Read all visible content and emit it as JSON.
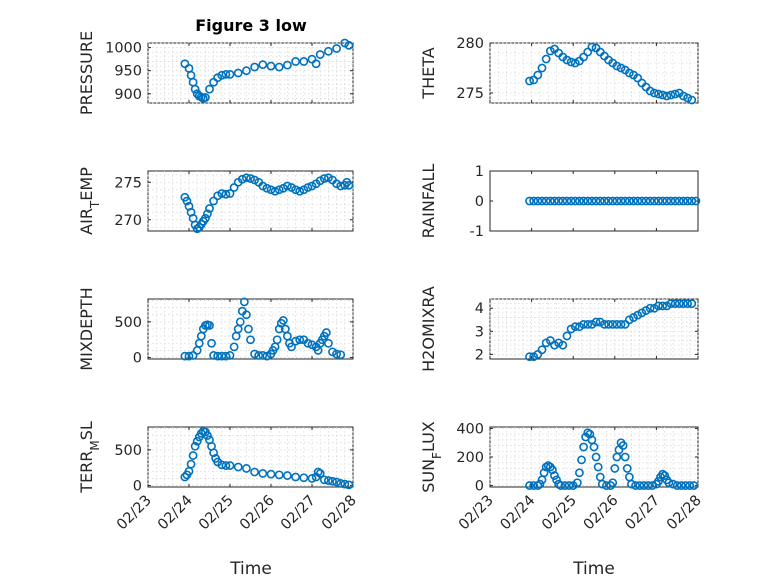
{
  "figure_title": "Figure 3 low",
  "marker_color": "#0072BD",
  "chart_data": [
    {
      "type": "scatter",
      "ylabel": "PRESSURE",
      "title": "Figure 3 low",
      "ylim": [
        880,
        1010
      ],
      "yticks": [
        900,
        950,
        1000
      ],
      "grid": true,
      "x": [
        23.9,
        24.0,
        24.05,
        24.1,
        24.15,
        24.2,
        24.25,
        24.3,
        24.35,
        24.4,
        24.5,
        24.6,
        24.7,
        24.8,
        24.9,
        25.0,
        25.2,
        25.4,
        25.6,
        25.8,
        26.0,
        26.2,
        26.4,
        26.6,
        26.8,
        27.0,
        27.1,
        27.2,
        27.4,
        27.6,
        27.8,
        27.9
      ],
      "y": [
        965,
        955,
        940,
        925,
        910,
        900,
        895,
        893,
        890,
        892,
        910,
        925,
        935,
        940,
        942,
        942,
        945,
        950,
        958,
        963,
        960,
        958,
        962,
        970,
        970,
        975,
        965,
        985,
        992,
        998,
        1010,
        1005
      ]
    },
    {
      "type": "scatter",
      "ylabel": "THETA",
      "ylim": [
        274,
        280
      ],
      "yticks": [
        275,
        280
      ],
      "grid": true,
      "x": [
        23.95,
        24.05,
        24.15,
        24.25,
        24.35,
        24.45,
        24.55,
        24.65,
        24.75,
        24.85,
        24.95,
        25.05,
        25.15,
        25.25,
        25.35,
        25.45,
        25.55,
        25.65,
        25.75,
        25.85,
        25.95,
        26.05,
        26.15,
        26.25,
        26.35,
        26.45,
        26.55,
        26.65,
        26.75,
        26.85,
        26.95,
        27.05,
        27.15,
        27.25,
        27.35,
        27.45,
        27.55,
        27.65,
        27.75,
        27.85
      ],
      "y": [
        276.2,
        276.3,
        276.8,
        277.5,
        278.4,
        279.2,
        279.4,
        279.0,
        278.6,
        278.3,
        278.1,
        278.0,
        278.2,
        278.6,
        279.1,
        279.6,
        279.5,
        279.1,
        278.7,
        278.3,
        278.0,
        277.7,
        277.5,
        277.3,
        277.0,
        276.8,
        276.5,
        276.0,
        275.6,
        275.2,
        275.0,
        274.9,
        274.8,
        274.7,
        274.8,
        274.9,
        275.0,
        274.7,
        274.5,
        274.3
      ]
    },
    {
      "type": "scatter",
      "ylabel": "AIR_TEMP",
      "ylim": [
        268.5,
        276.5
      ],
      "yticks": [
        270,
        275
      ],
      "grid": true,
      "x": [
        23.9,
        23.95,
        24.0,
        24.05,
        24.1,
        24.15,
        24.2,
        24.25,
        24.3,
        24.35,
        24.4,
        24.45,
        24.5,
        24.6,
        24.7,
        24.8,
        24.9,
        25.0,
        25.1,
        25.2,
        25.3,
        25.4,
        25.5,
        25.6,
        25.7,
        25.8,
        25.9,
        26.0,
        26.1,
        26.2,
        26.3,
        26.4,
        26.5,
        26.6,
        26.7,
        26.8,
        26.9,
        27.0,
        27.1,
        27.2,
        27.3,
        27.4,
        27.5,
        27.6,
        27.7,
        27.8,
        27.85,
        27.9
      ],
      "y": [
        273,
        272.5,
        271.8,
        271,
        270.2,
        269.3,
        268.8,
        269.0,
        269.4,
        269.8,
        270.2,
        270.8,
        271.5,
        272.5,
        273.2,
        273.5,
        273.4,
        273.5,
        274.3,
        275.0,
        275.4,
        275.6,
        275.5,
        275.3,
        275.0,
        274.5,
        274.2,
        274.0,
        273.8,
        274.0,
        274.2,
        274.5,
        274.3,
        274.0,
        273.8,
        274.0,
        274.3,
        274.5,
        274.8,
        275.2,
        275.5,
        275.6,
        275.3,
        274.8,
        274.5,
        274.6,
        275.0,
        274.6
      ]
    },
    {
      "type": "scatter",
      "ylabel": "RAINFALL",
      "ylim": [
        -1,
        1
      ],
      "yticks": [
        -1,
        0,
        1
      ],
      "grid": false,
      "x": [
        23.95,
        24.05,
        24.15,
        24.25,
        24.35,
        24.45,
        24.55,
        24.65,
        24.75,
        24.85,
        24.95,
        25.05,
        25.15,
        25.25,
        25.35,
        25.45,
        25.55,
        25.65,
        25.75,
        25.85,
        25.95,
        26.05,
        26.15,
        26.25,
        26.35,
        26.45,
        26.55,
        26.65,
        26.75,
        26.85,
        26.95,
        27.05,
        27.15,
        27.25,
        27.35,
        27.45,
        27.55,
        27.65,
        27.75,
        27.85,
        27.95
      ],
      "y": [
        0,
        0,
        0,
        0,
        0,
        0,
        0,
        0,
        0,
        0,
        0,
        0,
        0,
        0,
        0,
        0,
        0,
        0,
        0,
        0,
        0,
        0,
        0,
        0,
        0,
        0,
        0,
        0,
        0,
        0,
        0,
        0,
        0,
        0,
        0,
        0,
        0,
        0,
        0,
        0,
        0
      ]
    },
    {
      "type": "scatter",
      "ylabel": "MIXDEPTH",
      "ylim": [
        -20,
        820
      ],
      "yticks": [
        0,
        500
      ],
      "grid": true,
      "x": [
        23.9,
        24.0,
        24.1,
        24.2,
        24.25,
        24.3,
        24.35,
        24.4,
        24.45,
        24.5,
        24.55,
        24.6,
        24.7,
        24.8,
        24.9,
        25.0,
        25.1,
        25.15,
        25.2,
        25.25,
        25.3,
        25.35,
        25.4,
        25.45,
        25.5,
        25.6,
        25.7,
        25.8,
        25.9,
        26.0,
        26.05,
        26.1,
        26.15,
        26.2,
        26.25,
        26.3,
        26.35,
        26.4,
        26.45,
        26.5,
        26.6,
        26.7,
        26.8,
        26.9,
        27.0,
        27.1,
        27.15,
        27.2,
        27.25,
        27.3,
        27.35,
        27.4,
        27.5,
        27.6,
        27.7
      ],
      "y": [
        20,
        20,
        30,
        100,
        200,
        300,
        400,
        450,
        460,
        450,
        200,
        30,
        20,
        20,
        20,
        30,
        150,
        300,
        400,
        500,
        650,
        780,
        600,
        400,
        250,
        50,
        30,
        30,
        20,
        50,
        100,
        150,
        250,
        400,
        480,
        520,
        400,
        300,
        200,
        150,
        230,
        250,
        250,
        200,
        180,
        150,
        100,
        200,
        250,
        300,
        350,
        200,
        80,
        50,
        40
      ]
    },
    {
      "type": "scatter",
      "ylabel": "H2OMIXRA",
      "ylim": [
        1.8,
        4.4
      ],
      "yticks": [
        2,
        3,
        4
      ],
      "grid": true,
      "x": [
        23.95,
        24.05,
        24.15,
        24.25,
        24.35,
        24.45,
        24.55,
        24.65,
        24.75,
        24.85,
        24.95,
        25.05,
        25.15,
        25.25,
        25.35,
        25.45,
        25.55,
        25.65,
        25.75,
        25.85,
        25.95,
        26.05,
        26.15,
        26.25,
        26.35,
        26.45,
        26.55,
        26.65,
        26.75,
        26.85,
        26.95,
        27.05,
        27.15,
        27.25,
        27.35,
        27.45,
        27.55,
        27.65,
        27.75,
        27.85
      ],
      "y": [
        1.9,
        1.9,
        2.0,
        2.2,
        2.5,
        2.6,
        2.4,
        2.5,
        2.4,
        2.8,
        3.1,
        3.2,
        3.2,
        3.3,
        3.3,
        3.3,
        3.4,
        3.4,
        3.3,
        3.3,
        3.3,
        3.3,
        3.3,
        3.3,
        3.5,
        3.6,
        3.7,
        3.8,
        3.9,
        4.0,
        4.0,
        4.1,
        4.1,
        4.1,
        4.2,
        4.2,
        4.2,
        4.2,
        4.2,
        4.2
      ]
    },
    {
      "type": "scatter",
      "ylabel": "TERR_MSL",
      "ylim": [
        -20,
        820
      ],
      "yticks": [
        0,
        500
      ],
      "grid": true,
      "x": [
        23.9,
        23.95,
        24.0,
        24.05,
        24.1,
        24.15,
        24.2,
        24.25,
        24.3,
        24.35,
        24.4,
        24.45,
        24.5,
        24.55,
        24.6,
        24.65,
        24.7,
        24.8,
        24.9,
        25.0,
        25.2,
        25.4,
        25.6,
        25.8,
        26.0,
        26.2,
        26.4,
        26.6,
        26.8,
        27.0,
        27.1,
        27.15,
        27.2,
        27.3,
        27.4,
        27.5,
        27.6,
        27.7,
        27.8,
        27.9
      ],
      "y": [
        120,
        150,
        200,
        300,
        420,
        550,
        620,
        680,
        730,
        760,
        750,
        700,
        640,
        550,
        460,
        380,
        330,
        290,
        280,
        280,
        260,
        240,
        190,
        170,
        160,
        150,
        140,
        120,
        110,
        100,
        120,
        190,
        170,
        80,
        70,
        60,
        50,
        30,
        20,
        10
      ]
    },
    {
      "type": "scatter",
      "ylabel": "SUN_FLUX",
      "ylim": [
        -10,
        410
      ],
      "yticks": [
        0,
        200,
        400
      ],
      "grid": true,
      "x": [
        23.95,
        24.05,
        24.15,
        24.2,
        24.25,
        24.3,
        24.35,
        24.4,
        24.45,
        24.5,
        24.55,
        24.6,
        24.65,
        24.7,
        24.8,
        24.9,
        25.0,
        25.1,
        25.15,
        25.2,
        25.25,
        25.3,
        25.35,
        25.4,
        25.45,
        25.5,
        25.55,
        25.6,
        25.65,
        25.7,
        25.8,
        25.9,
        25.95,
        26.0,
        26.05,
        26.1,
        26.15,
        26.2,
        26.25,
        26.3,
        26.35,
        26.4,
        26.5,
        26.6,
        26.7,
        26.8,
        26.9,
        27.0,
        27.05,
        27.1,
        27.15,
        27.2,
        27.25,
        27.3,
        27.4,
        27.5,
        27.6,
        27.7,
        27.8,
        27.9
      ],
      "y": [
        0,
        0,
        0,
        10,
        40,
        90,
        130,
        140,
        130,
        110,
        70,
        40,
        10,
        0,
        0,
        0,
        0,
        20,
        90,
        180,
        270,
        340,
        370,
        360,
        320,
        270,
        200,
        130,
        60,
        10,
        0,
        0,
        20,
        120,
        200,
        250,
        300,
        280,
        200,
        120,
        60,
        10,
        0,
        0,
        0,
        0,
        0,
        10,
        30,
        60,
        80,
        70,
        40,
        20,
        10,
        0,
        0,
        0,
        0,
        0
      ]
    }
  ],
  "x_axis": {
    "ticks": [
      23,
      24,
      25,
      26,
      27,
      28
    ],
    "tick_labels": [
      "02/23",
      "02/24",
      "02/25",
      "02/26",
      "02/27",
      "02/28"
    ],
    "xlim": [
      23,
      28
    ],
    "label": "Time"
  }
}
